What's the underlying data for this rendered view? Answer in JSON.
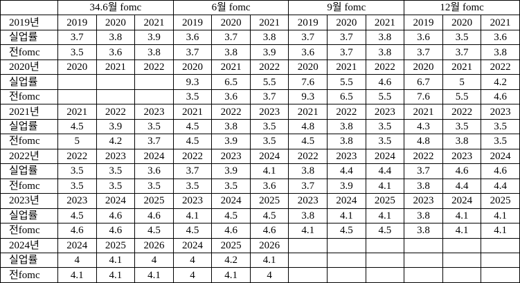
{
  "table": {
    "header": [
      null,
      "34.6월 fomc",
      "6월 fomc",
      "9월 fomc",
      "12월 fomc"
    ],
    "rows": [
      [
        "2019년",
        2019,
        2020,
        2021,
        2019,
        2020,
        2021,
        2019,
        2020,
        2021,
        2019,
        2020,
        2021
      ],
      [
        "실업률",
        3.7,
        3.8,
        3.9,
        3.6,
        3.7,
        3.8,
        3.7,
        3.7,
        3.8,
        3.6,
        3.5,
        3.6
      ],
      [
        "전fomc",
        3.5,
        3.6,
        3.8,
        3.7,
        3.8,
        3.9,
        3.6,
        3.7,
        3.8,
        3.7,
        3.7,
        3.8
      ],
      [
        "2020년",
        2020,
        2021,
        2022,
        2020,
        2021,
        2022,
        2020,
        2021,
        2022,
        2020,
        2021,
        2022
      ],
      [
        "실업률",
        null,
        null,
        null,
        9.3,
        6.5,
        5.5,
        7.6,
        5.5,
        4.6,
        6.7,
        5,
        4.2
      ],
      [
        "전fomc",
        null,
        null,
        null,
        3.5,
        3.6,
        3.7,
        9.3,
        6.5,
        5.5,
        7.6,
        5.5,
        4.6
      ],
      [
        "2021년",
        2021,
        2022,
        2023,
        2021,
        2022,
        2023,
        2021,
        2022,
        2023,
        2021,
        2022,
        2023
      ],
      [
        "실업률",
        4.5,
        3.9,
        3.5,
        4.5,
        3.8,
        3.5,
        4.8,
        3.8,
        3.5,
        4.3,
        3.5,
        3.5
      ],
      [
        "전fomc",
        5,
        4.2,
        3.7,
        4.5,
        3.9,
        3.5,
        4.5,
        3.8,
        3.5,
        4.8,
        3.8,
        3.5
      ],
      [
        "2022년",
        2022,
        2023,
        2024,
        2022,
        2023,
        2024,
        2022,
        2023,
        2024,
        2022,
        2023,
        2024
      ],
      [
        "실업률",
        3.5,
        3.5,
        3.6,
        3.7,
        3.9,
        4.1,
        3.8,
        4.4,
        4.4,
        3.7,
        4.6,
        4.6
      ],
      [
        "전fomc",
        3.5,
        3.5,
        3.5,
        3.5,
        3.5,
        3.6,
        3.7,
        3.9,
        4.1,
        3.8,
        4.4,
        4.4
      ],
      [
        "2023년",
        2023,
        2024,
        2025,
        2023,
        2024,
        2025,
        2023,
        2024,
        2025,
        2023,
        2024,
        2025
      ],
      [
        "실업률",
        4.5,
        4.6,
        4.6,
        4.1,
        4.5,
        4.5,
        3.8,
        4.1,
        4.1,
        3.8,
        4.1,
        4.1
      ],
      [
        "전fomc",
        4.6,
        4.6,
        4.5,
        4.5,
        4.6,
        4.6,
        4.1,
        4.5,
        4.5,
        3.8,
        4.1,
        4.1
      ],
      [
        "2024년",
        2024,
        2025,
        2026,
        2024,
        2025,
        2026,
        null,
        null,
        null,
        null,
        null,
        null
      ],
      [
        "실업률",
        4,
        4.1,
        4,
        4,
        4.2,
        4.1,
        null,
        null,
        null,
        null,
        null,
        null
      ],
      [
        "전fomc",
        4.1,
        4.1,
        4.1,
        4,
        4.1,
        4,
        null,
        null,
        null,
        null,
        null,
        null
      ]
    ]
  }
}
